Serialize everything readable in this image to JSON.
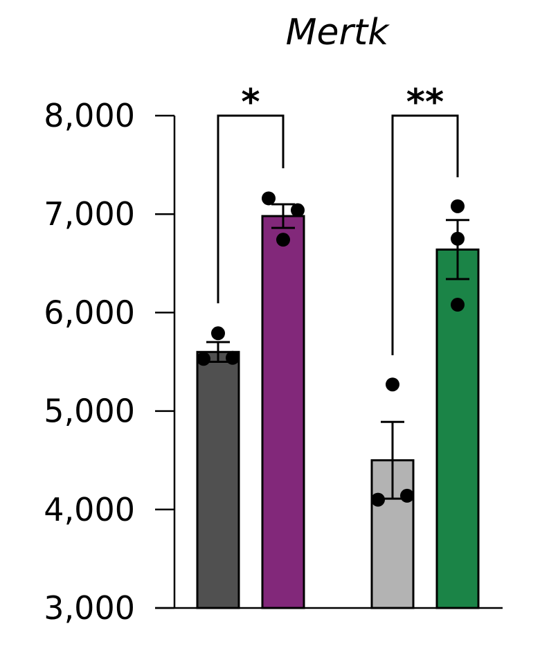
{
  "chart_data": {
    "type": "bar",
    "title": "Mertk",
    "xlabel": "",
    "ylabel": "",
    "ylim": [
      3000,
      8000
    ],
    "yticks": [
      3000,
      4000,
      5000,
      6000,
      7000,
      8000
    ],
    "ytick_labels": [
      "3,000",
      "4,000",
      "5,000",
      "6,000",
      "7,000",
      "8,000"
    ],
    "bars": [
      {
        "value": 5600,
        "sem": 100,
        "color": "#505050",
        "points": [
          5790,
          5530,
          5540
        ]
      },
      {
        "value": 6980,
        "sem": 120,
        "color": "#82287a",
        "points": [
          7160,
          7040,
          6740
        ]
      },
      {
        "value": 4500,
        "sem": 390,
        "color": "#b3b3b3",
        "points": [
          5270,
          4100,
          4140
        ]
      },
      {
        "value": 6640,
        "sem": 300,
        "color": "#1b8447",
        "points": [
          7080,
          6750,
          6080
        ]
      }
    ],
    "comparisons": [
      {
        "from": 0,
        "to": 1,
        "label": "*"
      },
      {
        "from": 2,
        "to": 3,
        "label": "**"
      }
    ]
  }
}
